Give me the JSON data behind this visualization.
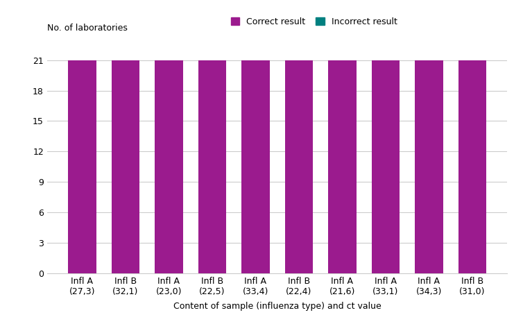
{
  "categories": [
    "Infl A\n(27,3)",
    "Infl B\n(32,1)",
    "Infl A\n(23,0)",
    "Infl B\n(22,5)",
    "Infl A\n(33,4)",
    "Infl B\n(22,4)",
    "Infl A\n(21,6)",
    "Infl A\n(33,1)",
    "Infl A\n(34,3)",
    "Infl B\n(31,0)"
  ],
  "correct_values": [
    21,
    21,
    21,
    21,
    21,
    21,
    21,
    21,
    21,
    21
  ],
  "incorrect_values": [
    0,
    0,
    0,
    0,
    0,
    0,
    0,
    0,
    0,
    0
  ],
  "correct_color": "#9B1B8E",
  "incorrect_color": "#008080",
  "ylabel": "No. of laboratories",
  "xlabel": "Content of sample (influenza type) and ct value",
  "ylim": [
    0,
    23
  ],
  "yticks": [
    0,
    3,
    6,
    9,
    12,
    15,
    18,
    21
  ],
  "legend_correct": "Correct result",
  "legend_incorrect": "Incorrect result",
  "background_color": "#ffffff",
  "grid_color": "#cccccc",
  "bar_width": 0.65
}
